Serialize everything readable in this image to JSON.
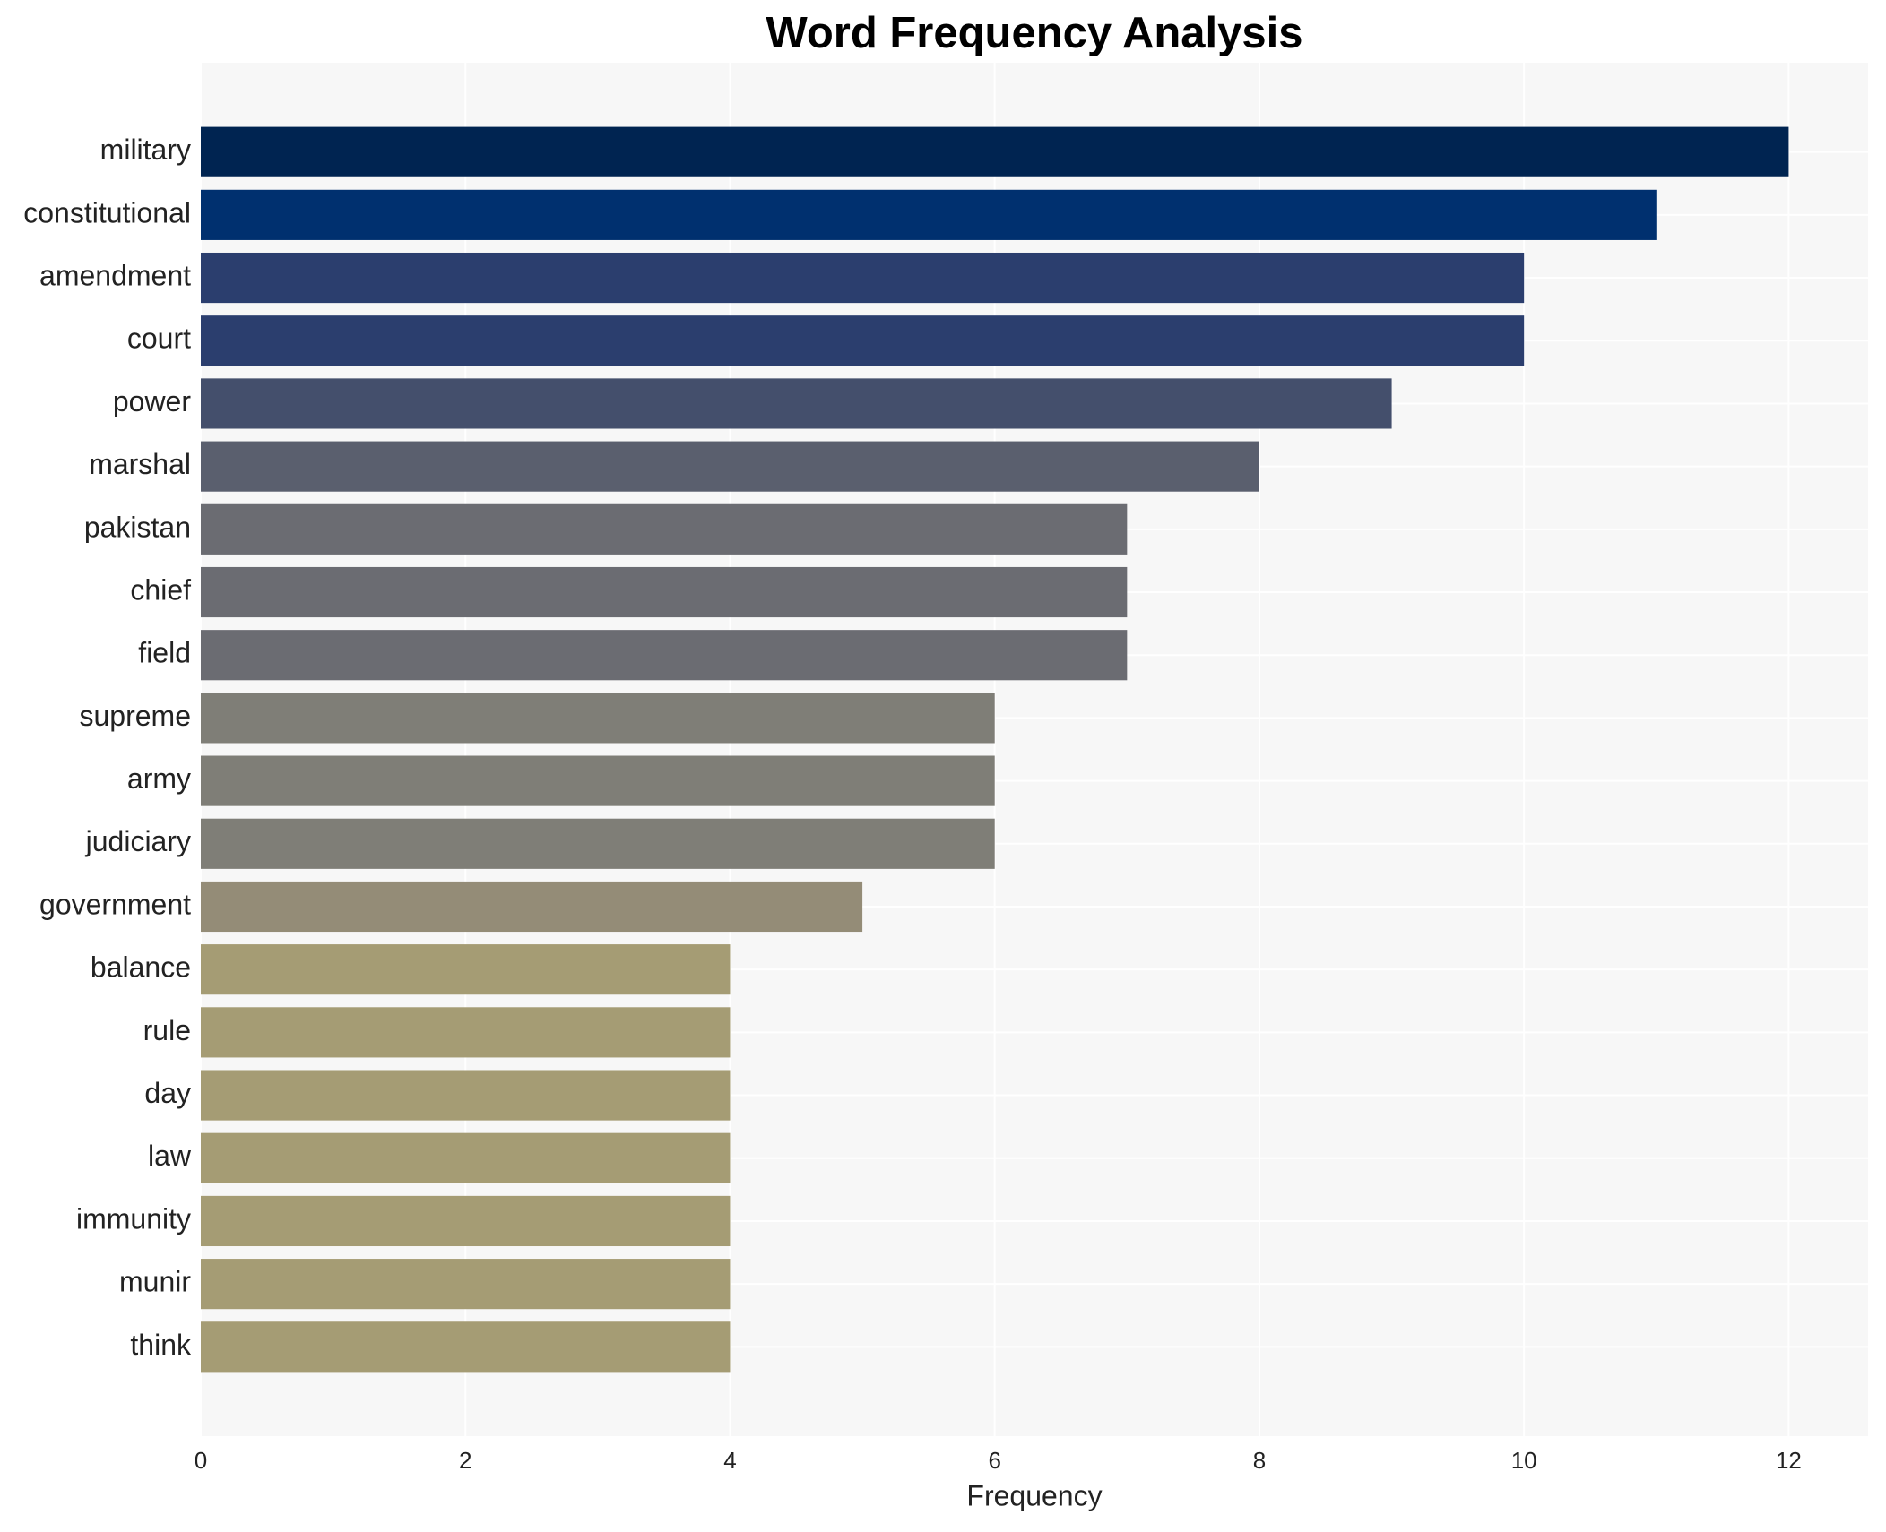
{
  "chart_data": {
    "type": "barh",
    "title": "Word Frequency Analysis",
    "xlabel": "Frequency",
    "categories": [
      "military",
      "constitutional",
      "amendment",
      "court",
      "power",
      "marshal",
      "pakistan",
      "chief",
      "field",
      "supreme",
      "army",
      "judiciary",
      "government",
      "balance",
      "rule",
      "day",
      "law",
      "immunity",
      "munir",
      "think"
    ],
    "values": [
      12,
      11,
      10,
      10,
      9,
      8,
      7,
      7,
      7,
      6,
      6,
      6,
      5,
      4,
      4,
      4,
      4,
      4,
      4,
      4
    ],
    "colors": [
      "#002451",
      "#00306f",
      "#2b3e6e",
      "#2b3e6e",
      "#444f6c",
      "#5a5f6e",
      "#6b6c72",
      "#6b6c72",
      "#6b6c72",
      "#7f7e77",
      "#7f7e77",
      "#7f7e77",
      "#948c77",
      "#a59c74",
      "#a59c74",
      "#a59c74",
      "#a59c74",
      "#a59c74",
      "#a59c74",
      "#a59c74"
    ],
    "xlim": [
      0,
      12.6
    ],
    "xticks": [
      0,
      2,
      4,
      6,
      8,
      10,
      12
    ],
    "grid": true
  }
}
